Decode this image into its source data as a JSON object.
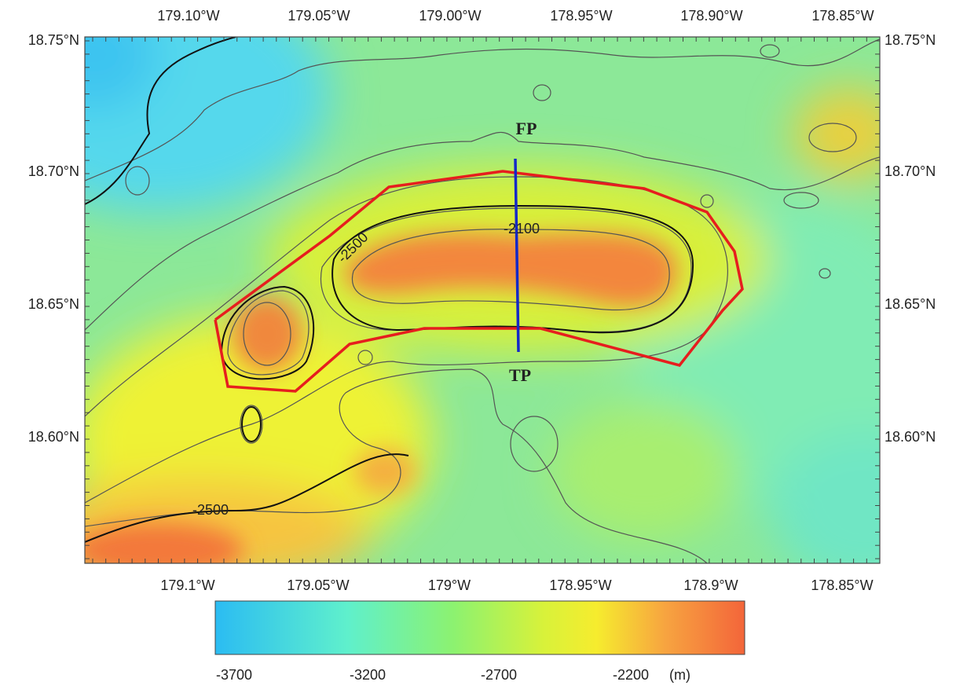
{
  "map": {
    "top_labels": [
      "179.10°W",
      "179.05°W",
      "179.00°W",
      "178.95°W",
      "178.90°W",
      "178.85°W"
    ],
    "bottom_labels": [
      "179.1°W",
      "179.05°W",
      "179°W",
      "178.95°W",
      "178.9°W",
      "178.85°W"
    ],
    "left_labels": [
      "18.75°N",
      "18.70°N",
      "18.65°N",
      "18.60°N"
    ],
    "right_labels": [
      "18.75°N",
      "18.70°N",
      "18.65°N",
      "18.60°N"
    ],
    "contour_labels": [
      -2500,
      -2100,
      -2500
    ],
    "markers": [
      "FP",
      "TP"
    ]
  },
  "colorbar": {
    "ticks": [
      -3700,
      -3200,
      -2700,
      -2200
    ],
    "unit": "(m)"
  }
}
